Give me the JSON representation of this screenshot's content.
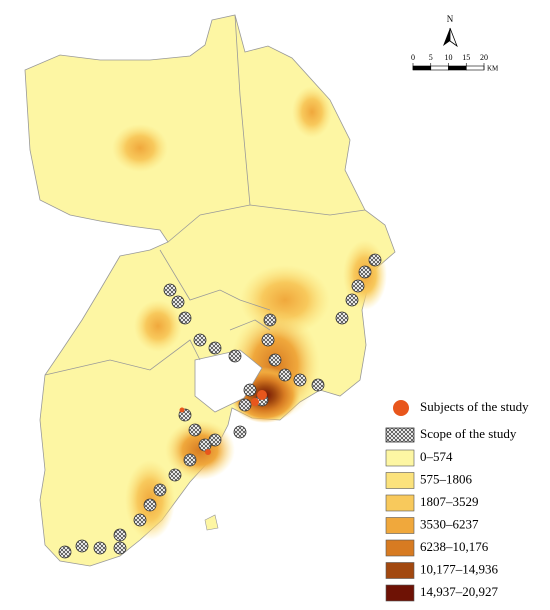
{
  "north_label": "N",
  "scale_bar": {
    "ticks": [
      0,
      5,
      10,
      15,
      20
    ],
    "unit": "KM"
  },
  "legend": {
    "subjects": {
      "label": "Subjects of the study",
      "color": "#e8561c"
    },
    "scope": {
      "label": "Scope of the study"
    },
    "classes": [
      {
        "label": "0–574",
        "color": "#fdf6a3"
      },
      {
        "label": "575–1806",
        "color": "#fbe27c"
      },
      {
        "label": "1807–3529",
        "color": "#f8c95c"
      },
      {
        "label": "3530–6237",
        "color": "#f0a83c"
      },
      {
        "label": "6238–10,176",
        "color": "#d77b22"
      },
      {
        "label": "10,177–14,936",
        "color": "#a2480f"
      },
      {
        "label": "14,937–20,927",
        "color": "#6e1205"
      }
    ]
  }
}
